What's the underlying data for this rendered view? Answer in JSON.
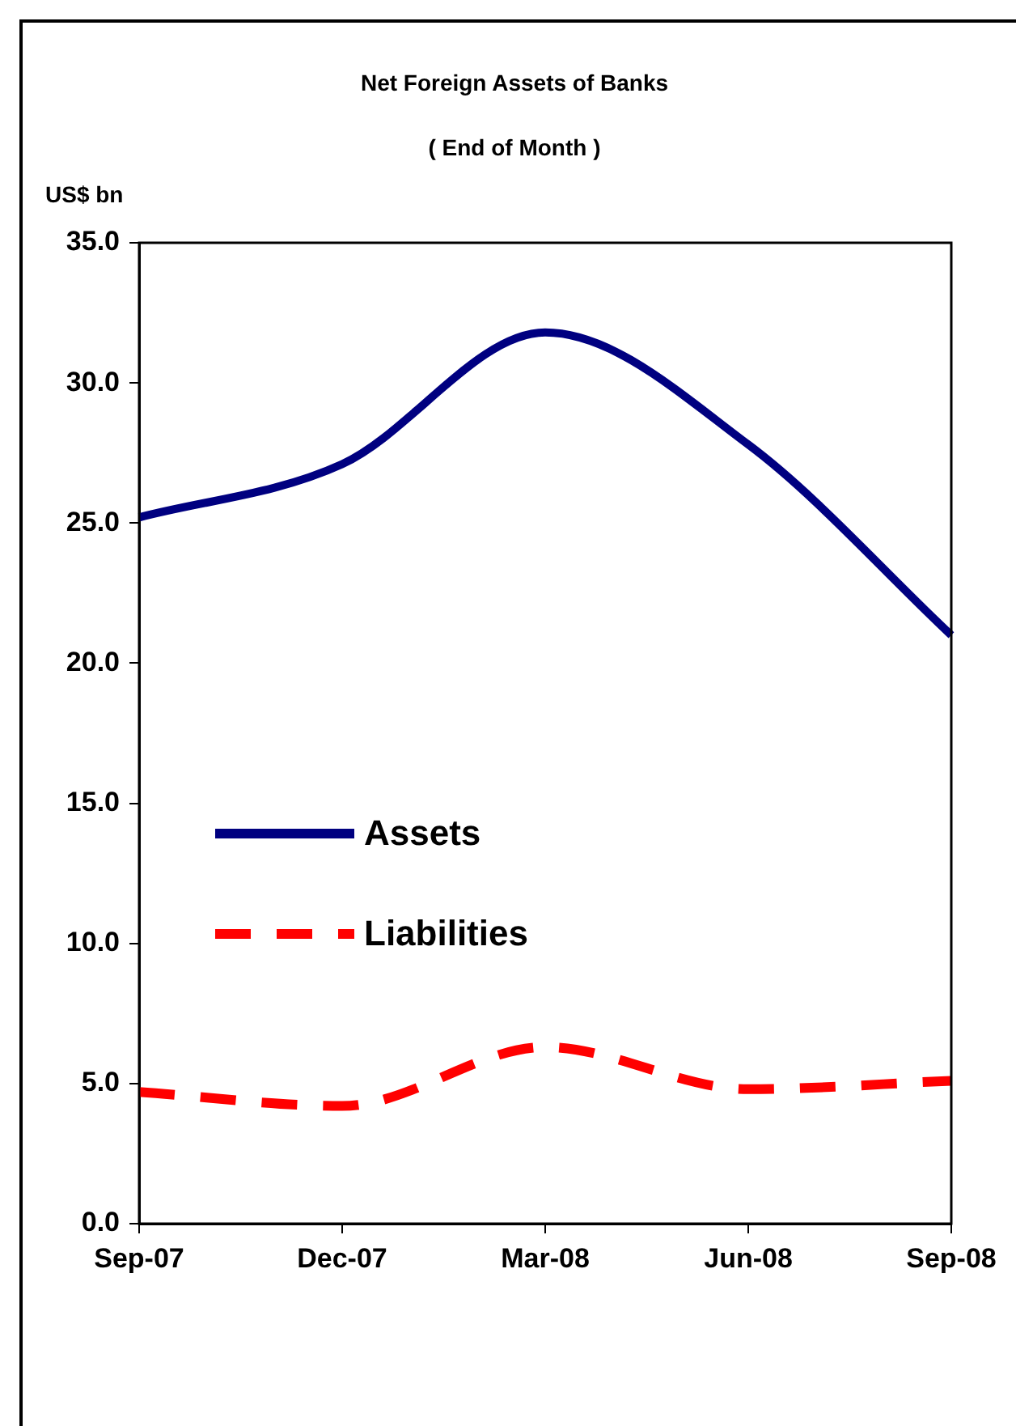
{
  "chart_data": {
    "type": "line",
    "title": "Net Foreign Assets of Banks",
    "subtitle": "( End of Month )",
    "ylabel": "US$ bn",
    "categories": [
      "Sep-07",
      "Dec-07",
      "Mar-08",
      "Jun-08",
      "Sep-08"
    ],
    "series": [
      {
        "name": "Assets",
        "color": "#000080",
        "values": [
          25.2,
          27.1,
          31.8,
          27.8,
          21.0
        ],
        "line_style": "solid"
      },
      {
        "name": "Liabilities",
        "color": "#ff0000",
        "values": [
          4.7,
          4.2,
          6.3,
          4.8,
          5.1
        ],
        "line_style": "dashed"
      }
    ],
    "ylim": [
      0,
      35
    ],
    "yticks": [
      {
        "value": 0,
        "label": "0.0"
      },
      {
        "value": 5,
        "label": "5.0"
      },
      {
        "value": 10,
        "label": "10.0"
      },
      {
        "value": 15,
        "label": "15.0"
      },
      {
        "value": 20,
        "label": "20.0"
      },
      {
        "value": 25,
        "label": "25.0"
      },
      {
        "value": 30,
        "label": "30.0"
      },
      {
        "value": 35,
        "label": "35.0"
      }
    ],
    "grid": false,
    "legend": "center left",
    "marker": "none"
  }
}
